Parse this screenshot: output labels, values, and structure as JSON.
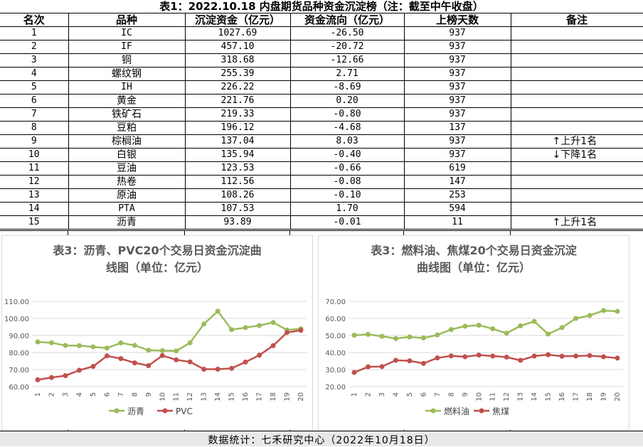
{
  "title": "表1：2022.10.18 内盘期货品种资金沉淀榜（注：截至中午收盘）",
  "table": {
    "headers": [
      "名次",
      "品种",
      "沉淀资金（亿元）",
      "资金流向（亿元）",
      "上榜天数",
      "备注"
    ],
    "rows": [
      [
        "1",
        "IC",
        "1027.69",
        "-26.50",
        "937",
        ""
      ],
      [
        "2",
        "IF",
        "457.10",
        "-20.72",
        "937",
        ""
      ],
      [
        "3",
        "铜",
        "318.68",
        "-12.66",
        "937",
        ""
      ],
      [
        "4",
        "螺纹钢",
        "255.39",
        "2.71",
        "937",
        ""
      ],
      [
        "5",
        "IH",
        "226.22",
        "-8.69",
        "937",
        ""
      ],
      [
        "6",
        "黄金",
        "221.76",
        "0.20",
        "937",
        ""
      ],
      [
        "7",
        "铁矿石",
        "219.33",
        "-0.80",
        "937",
        ""
      ],
      [
        "8",
        "豆粕",
        "196.12",
        "-4.68",
        "137",
        ""
      ],
      [
        "9",
        "棕榈油",
        "137.04",
        "8.03",
        "937",
        "↑上升1名"
      ],
      [
        "10",
        "白银",
        "135.94",
        "-0.40",
        "937",
        "↓下降1名"
      ],
      [
        "11",
        "豆油",
        "123.53",
        "-0.66",
        "619",
        ""
      ],
      [
        "12",
        "热卷",
        "112.56",
        "-0.08",
        "147",
        ""
      ],
      [
        "13",
        "原油",
        "108.26",
        "-0.10",
        "253",
        ""
      ],
      [
        "14",
        "PTA",
        "107.53",
        "1.70",
        "594",
        ""
      ],
      [
        "15",
        "沥青",
        "93.89",
        "-0.01",
        "11",
        "↑上升1名"
      ]
    ]
  },
  "chart_data": [
    {
      "type": "line",
      "title": "表3：沥青、PVC20个交易日资金沉淀曲线图（单位：亿元）",
      "title_lines": [
        "表3：沥青、PVC20个交易日资金沉淀曲",
        "线图（单位：亿元）"
      ],
      "x": [
        1,
        2,
        3,
        4,
        5,
        6,
        7,
        8,
        9,
        10,
        11,
        12,
        13,
        14,
        15,
        16,
        17,
        18,
        19,
        20
      ],
      "ylim": [
        60,
        110
      ],
      "yticks": [
        "60.00",
        "70.00",
        "80.00",
        "90.00",
        "100.00",
        "110.00"
      ],
      "grid": true,
      "legend": "bottom",
      "series": [
        {
          "name": "沥青",
          "color": "#9bbb59",
          "values": [
            86.2,
            85.7,
            84.1,
            84.0,
            83.3,
            82.6,
            85.6,
            84.2,
            81.3,
            81.1,
            80.9,
            85.7,
            96.7,
            104.2,
            93.4,
            94.6,
            95.8,
            97.6,
            93.2,
            93.9
          ]
        },
        {
          "name": "PVC",
          "color": "#c0504d",
          "values": [
            64.0,
            65.3,
            66.4,
            69.6,
            71.8,
            78.0,
            76.4,
            73.9,
            72.3,
            78.2,
            75.7,
            74.5,
            70.2,
            70.2,
            70.7,
            74.4,
            78.4,
            84.0,
            91.7,
            93.0
          ]
        }
      ]
    },
    {
      "type": "line",
      "title": "表3：燃料油、焦煤20个交易日资金沉淀曲线图（单位：亿元）",
      "title_lines": [
        "表3：燃料油、焦煤20个交易日资金沉淀",
        "曲线图（单位：亿元）"
      ],
      "x": [
        1,
        2,
        3,
        4,
        5,
        6,
        7,
        8,
        9,
        10,
        11,
        12,
        13,
        14,
        15,
        16,
        17,
        18,
        19,
        20
      ],
      "ylim": [
        20,
        70
      ],
      "yticks": [
        "20.00",
        "30.00",
        "40.00",
        "50.00",
        "60.00",
        "70.00"
      ],
      "grid": true,
      "legend": "bottom",
      "series": [
        {
          "name": "燃料油",
          "color": "#9bbb59",
          "values": [
            50.1,
            50.6,
            49.5,
            48.2,
            49.1,
            48.5,
            50.3,
            53.5,
            55.4,
            56.0,
            53.9,
            51.3,
            55.6,
            58.2,
            50.8,
            54.6,
            60.0,
            61.7,
            64.6,
            64.1
          ]
        },
        {
          "name": "焦煤",
          "color": "#c0504d",
          "values": [
            28.3,
            31.6,
            31.7,
            35.4,
            35.1,
            33.6,
            36.8,
            38.0,
            37.5,
            38.5,
            37.9,
            37.3,
            35.4,
            37.9,
            38.7,
            37.8,
            37.9,
            38.2,
            37.5,
            36.7
          ]
        }
      ]
    }
  ],
  "footer": "数据统计：七禾研究中心（2022年10月18日）"
}
